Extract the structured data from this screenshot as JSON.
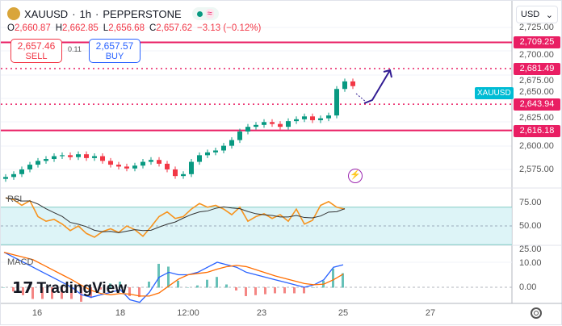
{
  "header": {
    "symbol": "XAUUSD",
    "interval": "1h",
    "exchange": "PEPPERSTONE",
    "sep": "·"
  },
  "ohlc": {
    "o_label": "O",
    "o": "2,660.87",
    "h_label": "H",
    "h": "2,662.85",
    "l_label": "L",
    "l": "2,656.68",
    "c_label": "C",
    "c": "2,657.62",
    "change": "−3.13 (−0.12%)"
  },
  "trade": {
    "sell_price": "2,657.46",
    "sell_label": "SELL",
    "spread": "0.11",
    "buy_price": "2,657.57",
    "buy_label": "BUY"
  },
  "currency": "USD",
  "symbol_tag": "XAUUSD",
  "price_axis": [
    "2,725.00",
    "2,700.00",
    "2,675.00",
    "2,650.00",
    "2,625.00",
    "2,600.00",
    "2,575.00"
  ],
  "levels": [
    {
      "value": "2,709.25",
      "style": "solid"
    },
    {
      "value": "2,681.49",
      "style": "dotted"
    },
    {
      "value": "2,643.94",
      "style": "dotted"
    },
    {
      "value": "2,616.18",
      "style": "solid"
    }
  ],
  "rsi": {
    "label": "RSI",
    "axis": [
      "75.00",
      "50.00",
      "25.00"
    ]
  },
  "macd": {
    "label": "MACD",
    "axis": [
      "10.00",
      "0.00"
    ]
  },
  "time_axis": [
    "16",
    "18",
    "12:00",
    "23",
    "25",
    "27"
  ],
  "watermark": "TradingView",
  "colors": {
    "up": "#089981",
    "down": "#f23645",
    "level": "#e91e63",
    "rsi": "#f7931e",
    "macd": "#2962ff",
    "signal": "#ff6d00",
    "arrow": "#311b92"
  },
  "chart_data": {
    "type": "candlestick",
    "closes": [
      2567,
      2570,
      2575,
      2580,
      2584,
      2586,
      2589,
      2590,
      2588,
      2591,
      2587,
      2589,
      2584,
      2580,
      2578,
      2576,
      2579,
      2583,
      2585,
      2581,
      2575,
      2568,
      2570,
      2583,
      2590,
      2593,
      2595,
      2600,
      2606,
      2615,
      2620,
      2622,
      2625,
      2623,
      2620,
      2626,
      2628,
      2631,
      2627,
      2629,
      2632,
      2660,
      2668,
      2663
    ],
    "rsi": [
      80,
      78,
      72,
      77,
      60,
      55,
      57,
      52,
      45,
      50,
      42,
      38,
      44,
      47,
      43,
      50,
      46,
      39,
      49,
      60,
      65,
      58,
      60,
      68,
      74,
      70,
      72,
      68,
      62,
      70,
      55,
      60,
      63,
      58,
      62,
      55,
      68,
      52,
      56,
      72,
      76,
      70,
      68
    ],
    "macd": [
      14,
      12,
      10,
      8,
      6,
      4,
      2,
      0,
      -3,
      -4,
      -3,
      -2,
      -1,
      -5,
      -6,
      -2,
      4,
      6,
      5,
      5,
      6,
      8,
      10,
      9,
      8,
      6,
      5,
      4,
      3,
      2,
      1,
      0,
      1,
      3,
      8,
      9
    ]
  }
}
